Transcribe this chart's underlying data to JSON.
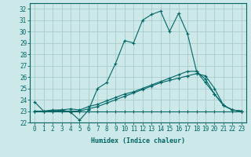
{
  "xlabel": "Humidex (Indice chaleur)",
  "bg_color": "#cce8e8",
  "grid_color": "#aacccc",
  "line_color": "#006666",
  "xlim": [
    -0.5,
    23.5
  ],
  "ylim": [
    22,
    32.5
  ],
  "yticks": [
    22,
    23,
    24,
    25,
    26,
    27,
    28,
    29,
    30,
    31,
    32
  ],
  "xticks": [
    0,
    1,
    2,
    3,
    4,
    5,
    6,
    7,
    8,
    9,
    10,
    11,
    12,
    13,
    14,
    15,
    16,
    17,
    18,
    19,
    20,
    21,
    22,
    23
  ],
  "series": [
    [
      23.8,
      23.0,
      23.1,
      23.1,
      22.9,
      22.2,
      23.1,
      25.0,
      25.5,
      27.2,
      29.2,
      29.0,
      31.0,
      31.5,
      31.8,
      30.0,
      31.6,
      29.8,
      26.5,
      25.8,
      24.5,
      23.5,
      23.1,
      23.0
    ],
    [
      23.0,
      23.0,
      23.0,
      23.0,
      23.0,
      23.0,
      23.0,
      23.0,
      23.0,
      23.0,
      23.0,
      23.0,
      23.0,
      23.0,
      23.0,
      23.0,
      23.0,
      23.0,
      23.0,
      23.0,
      23.0,
      23.0,
      23.0,
      23.0
    ],
    [
      23.0,
      23.0,
      23.0,
      23.1,
      23.2,
      23.1,
      23.4,
      23.6,
      23.9,
      24.2,
      24.5,
      24.7,
      25.0,
      25.3,
      25.6,
      25.9,
      26.2,
      26.5,
      26.5,
      25.5,
      24.5,
      23.5,
      23.1,
      23.0
    ],
    [
      23.0,
      23.0,
      23.0,
      23.0,
      23.0,
      23.0,
      23.2,
      23.4,
      23.7,
      24.0,
      24.3,
      24.6,
      24.9,
      25.2,
      25.5,
      25.7,
      25.9,
      26.1,
      26.3,
      26.1,
      25.0,
      23.5,
      23.1,
      23.0
    ]
  ]
}
